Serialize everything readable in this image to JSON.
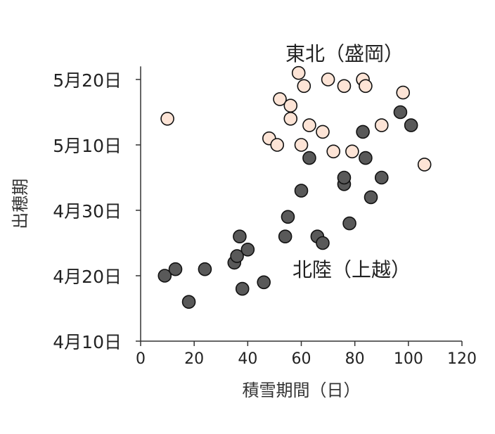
{
  "chart_data": {
    "type": "scatter",
    "xlabel": "積雪期間（日）",
    "ylabel": "出穂期",
    "xlim": [
      0,
      120
    ],
    "x_ticks": [
      0,
      20,
      40,
      60,
      80,
      100,
      120
    ],
    "ylim": [
      "2000-04-10",
      "2000-05-22"
    ],
    "y_tick_labels": [
      "5月20日",
      "5月10日",
      "4月30日",
      "4月20日",
      "4月10日"
    ],
    "y_tick_dates": [
      "2000-05-20",
      "2000-05-10",
      "2000-04-30",
      "2000-04-20",
      "2000-04-10"
    ],
    "grid": false,
    "annotations": [
      "東北（盛岡）",
      "北陸（上越）"
    ],
    "series": [
      {
        "name": "東北（盛岡）",
        "color": "#fde4d6",
        "points": [
          {
            "x": 10,
            "y": "2000-05-14"
          },
          {
            "x": 48,
            "y": "2000-05-11"
          },
          {
            "x": 51,
            "y": "2000-05-10"
          },
          {
            "x": 52,
            "y": "2000-05-17"
          },
          {
            "x": 56,
            "y": "2000-05-16"
          },
          {
            "x": 56,
            "y": "2000-05-14"
          },
          {
            "x": 59,
            "y": "2000-05-21"
          },
          {
            "x": 60,
            "y": "2000-05-10"
          },
          {
            "x": 61,
            "y": "2000-05-19"
          },
          {
            "x": 63,
            "y": "2000-05-13"
          },
          {
            "x": 68,
            "y": "2000-05-12"
          },
          {
            "x": 70,
            "y": "2000-05-20"
          },
          {
            "x": 72,
            "y": "2000-05-09"
          },
          {
            "x": 76,
            "y": "2000-05-19"
          },
          {
            "x": 79,
            "y": "2000-05-09"
          },
          {
            "x": 83,
            "y": "2000-05-20"
          },
          {
            "x": 84,
            "y": "2000-05-19"
          },
          {
            "x": 90,
            "y": "2000-05-13"
          },
          {
            "x": 98,
            "y": "2000-05-18"
          },
          {
            "x": 106,
            "y": "2000-05-07"
          }
        ]
      },
      {
        "name": "北陸（上越）",
        "color": "#595959",
        "points": [
          {
            "x": 9,
            "y": "2000-04-20"
          },
          {
            "x": 13,
            "y": "2000-04-21"
          },
          {
            "x": 18,
            "y": "2000-04-16"
          },
          {
            "x": 24,
            "y": "2000-04-21"
          },
          {
            "x": 35,
            "y": "2000-04-22"
          },
          {
            "x": 36,
            "y": "2000-04-23"
          },
          {
            "x": 37,
            "y": "2000-04-26"
          },
          {
            "x": 38,
            "y": "2000-04-18"
          },
          {
            "x": 40,
            "y": "2000-04-24"
          },
          {
            "x": 46,
            "y": "2000-04-19"
          },
          {
            "x": 54,
            "y": "2000-04-26"
          },
          {
            "x": 55,
            "y": "2000-04-29"
          },
          {
            "x": 60,
            "y": "2000-05-03"
          },
          {
            "x": 63,
            "y": "2000-05-08"
          },
          {
            "x": 66,
            "y": "2000-04-26"
          },
          {
            "x": 68,
            "y": "2000-04-25"
          },
          {
            "x": 76,
            "y": "2000-05-04"
          },
          {
            "x": 76,
            "y": "2000-05-05"
          },
          {
            "x": 78,
            "y": "2000-04-28"
          },
          {
            "x": 83,
            "y": "2000-05-12"
          },
          {
            "x": 84,
            "y": "2000-05-08"
          },
          {
            "x": 86,
            "y": "2000-05-02"
          },
          {
            "x": 90,
            "y": "2000-05-05"
          },
          {
            "x": 97,
            "y": "2000-05-15"
          },
          {
            "x": 101,
            "y": "2000-05-13"
          }
        ]
      }
    ]
  }
}
